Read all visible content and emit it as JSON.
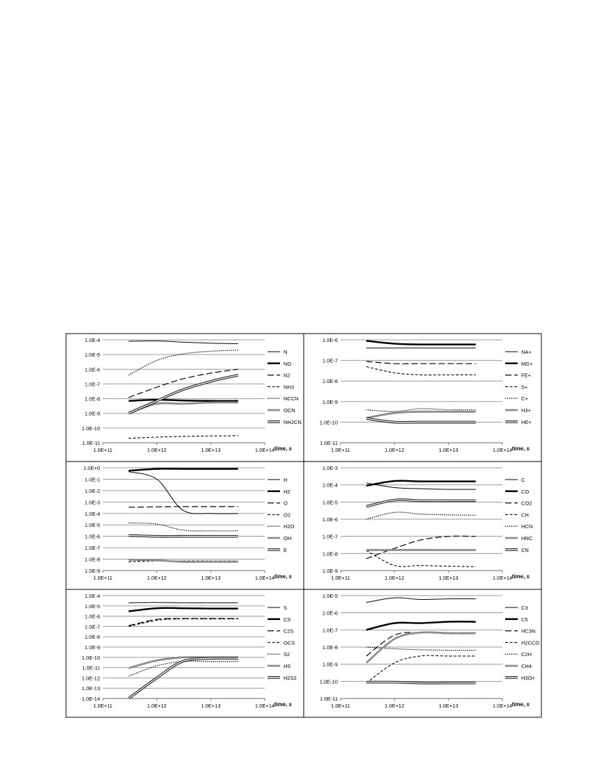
{
  "figure": {
    "chart_data": [
      {
        "type": "line",
        "panel": "top-left",
        "xlabel": "time, s",
        "xscale": "log",
        "yscale": "log",
        "xticks": [
          "1.0E+11",
          "1.0E+12",
          "1.0E+13",
          "1.0E+14"
        ],
        "yticks": [
          "1.0E-4",
          "1.0E-5",
          "1.0E-6",
          "1.0E-7",
          "1.0E-8",
          "1.0E-9",
          "1.0E-10",
          "1.0E-11"
        ],
        "xlim": [
          100000000000.0,
          100000000000000.0
        ],
        "ylim": [
          1e-11,
          0.0001
        ],
        "grid": "horizontal",
        "legend": "right",
        "x": [
          300000000000.0,
          1000000000000.0,
          3000000000000.0,
          10000000000000.0,
          32000000000000.0
        ],
        "series": [
          {
            "name": "N",
            "style": "thin",
            "values": [
              8e-05,
              8.5e-05,
              7e-05,
              6e-05,
              5.5e-05
            ]
          },
          {
            "name": "NO",
            "style": "thick",
            "values": [
              7e-09,
              8.5e-09,
              7.5e-09,
              7e-09,
              7e-09
            ]
          },
          {
            "name": "N2",
            "style": "dash",
            "values": [
              1.2e-08,
              6e-08,
              2.2e-07,
              5.5e-07,
              1e-06
            ]
          },
          {
            "name": "NH3",
            "style": "shortdash",
            "values": [
              2e-11,
              2.4e-11,
              2.7e-11,
              2.9e-11,
              3e-11
            ]
          },
          {
            "name": "NCCN",
            "style": "dot",
            "values": [
              4e-07,
              4e-06,
              1.1e-05,
              1.7e-05,
              2e-05
            ]
          },
          {
            "name": "OCN",
            "style": "gray",
            "values": [
              1e-09,
              4.5e-09,
              4.5e-09,
              5.5e-09,
              5.5e-09
            ]
          },
          {
            "name": "NH2CN",
            "style": "double",
            "values": [
              1e-09,
              7e-09,
              4e-08,
              1.5e-07,
              4e-07
            ]
          }
        ]
      },
      {
        "type": "line",
        "panel": "top-right",
        "xlabel": "time, s",
        "xscale": "log",
        "yscale": "log",
        "xticks": [
          "1.0E+11",
          "1.0E+12",
          "1.0E+13",
          "1.0E+14"
        ],
        "yticks": [
          "1.0E-6",
          "1.0E-7",
          "1.0E-8",
          "1.0E-9",
          "1.0E-10",
          "1.0E-11"
        ],
        "xlim": [
          100000000000.0,
          100000000000000.0
        ],
        "ylim": [
          1e-11,
          1e-06
        ],
        "grid": "horizontal",
        "legend": "right",
        "x": [
          300000000000.0,
          1000000000000.0,
          3000000000000.0,
          10000000000000.0,
          32000000000000.0
        ],
        "series": [
          {
            "name": "NA+",
            "style": "thin",
            "values": [
              4e-07,
              4e-07,
              4e-07,
              4e-07,
              4e-07
            ]
          },
          {
            "name": "MG+",
            "style": "thick",
            "values": [
              9e-07,
              6.5e-07,
              6e-07,
              6e-07,
              6e-07
            ]
          },
          {
            "name": "FE+",
            "style": "dash",
            "values": [
              9e-08,
              7e-08,
              7e-08,
              7e-08,
              7e-08
            ]
          },
          {
            "name": "S+",
            "style": "shortdash",
            "values": [
              5e-08,
              2.5e-08,
              2e-08,
              2e-08,
              2e-08
            ]
          },
          {
            "name": "C+",
            "style": "dot",
            "values": [
              4e-10,
              3.3e-10,
              4.5e-10,
              4e-10,
              4e-10
            ]
          },
          {
            "name": "H3+",
            "style": "gray",
            "values": [
              1.6e-10,
              2.8e-10,
              3.2e-10,
              3.2e-10,
              3.2e-10
            ]
          },
          {
            "name": "HE+",
            "style": "double",
            "values": [
              1.5e-10,
              1e-10,
              1e-10,
              1e-10,
              1e-10
            ]
          }
        ]
      },
      {
        "type": "line",
        "panel": "middle-left",
        "xlabel": "time, s",
        "xscale": "log",
        "yscale": "log",
        "xticks": [
          "1.0E+11",
          "1.0E+12",
          "1.0E+13",
          "1.0E+14"
        ],
        "yticks": [
          "1.0E+0",
          "1.0E-1",
          "1.0E-2",
          "1.0E-3",
          "1.0E-4",
          "1.0E-5",
          "1.0E-6",
          "1.0E-7",
          "1.0E-8",
          "1.0E-9"
        ],
        "xlim": [
          100000000000.0,
          100000000000000.0
        ],
        "ylim": [
          1e-09,
          1
        ],
        "grid": "horizontal",
        "legend": "right",
        "x": [
          300000000000.0,
          1000000000000.0,
          3000000000000.0,
          10000000000000.0,
          32000000000000.0
        ],
        "series": [
          {
            "name": "H",
            "style": "thin",
            "values": [
              0.45,
              0.1,
              0.0002,
              0.0001,
              0.0001
            ]
          },
          {
            "name": "H2",
            "style": "thick",
            "values": [
              0.55,
              0.8,
              0.8,
              0.8,
              0.8
            ]
          },
          {
            "name": "O",
            "style": "dash",
            "values": [
              0.00035,
              0.00038,
              0.0004,
              0.0004,
              0.0004
            ]
          },
          {
            "name": "O2",
            "style": "shortdash",
            "values": [
              6e-09,
              7e-09,
              7e-09,
              7e-09,
              7e-09
            ]
          },
          {
            "name": "H2O",
            "style": "dot",
            "values": [
              1.5e-05,
              1.2e-05,
              3.5e-06,
              3e-06,
              3e-06
            ]
          },
          {
            "name": "OH",
            "style": "gray",
            "values": [
              9e-09,
              8e-09,
              6e-09,
              6e-09,
              6e-09
            ]
          },
          {
            "name": "E",
            "style": "double",
            "values": [
              1.2e-06,
              1e-06,
              1e-06,
              1e-06,
              1e-06
            ]
          }
        ]
      },
      {
        "type": "line",
        "panel": "middle-right",
        "xlabel": "time, s",
        "xscale": "log",
        "yscale": "log",
        "xticks": [
          "1.0E+11",
          "1.0E+12",
          "1.0E+13",
          "1.0E+14"
        ],
        "yticks": [
          "1.0E-3",
          "1.0E-4",
          "1.0E-5",
          "1.0E-6",
          "1.0E-7",
          "1.0E-8",
          "1.0E-9"
        ],
        "xlim": [
          100000000000.0,
          100000000000000.0
        ],
        "ylim": [
          1e-09,
          0.001
        ],
        "grid": "horizontal",
        "legend": "right",
        "x": [
          300000000000.0,
          1000000000000.0,
          3000000000000.0,
          10000000000000.0,
          32000000000000.0
        ],
        "series": [
          {
            "name": "C",
            "style": "thin",
            "values": [
              0.00013,
              7e-05,
              6e-05,
              5.5e-05,
              5.5e-05
            ]
          },
          {
            "name": "CO",
            "style": "thick",
            "values": [
              9e-05,
              0.00017,
              0.00016,
              0.00016,
              0.00016
            ]
          },
          {
            "name": "CO2",
            "style": "dash",
            "values": [
              5e-09,
              2e-08,
              6e-08,
              1e-07,
              1e-07
            ]
          },
          {
            "name": "CH",
            "style": "shortdash",
            "values": [
              1.5e-08,
              2e-09,
              2e-09,
              1.8e-09,
              1.7e-09
            ]
          },
          {
            "name": "HCN",
            "style": "dot",
            "values": [
              1e-06,
              2.5e-06,
              2e-06,
              1.8e-06,
              1.7e-06
            ]
          },
          {
            "name": "HNC",
            "style": "gray",
            "values": [
              1.6e-08,
              1.6e-08,
              1.6e-08,
              1.6e-08,
              1.6e-08
            ]
          },
          {
            "name": "CN",
            "style": "double",
            "values": [
              5.5e-06,
              1.3e-05,
              1.2e-05,
              1.2e-05,
              1.2e-05
            ]
          }
        ]
      },
      {
        "type": "line",
        "panel": "bottom-left",
        "xlabel": "time, s",
        "xscale": "log",
        "yscale": "log",
        "xticks": [
          "1.0E+11",
          "1.0E+12",
          "1.0E+13",
          "1.0E+14"
        ],
        "yticks": [
          "1.0E-4",
          "1.0E-5",
          "1.0E-6",
          "1.0E-7",
          "1.0E-8",
          "1.0E-9",
          "1.0E-10",
          "1.0E-11",
          "1.0E-12",
          "1.0E-13",
          "1.0E-14"
        ],
        "xlim": [
          100000000000.0,
          100000000000000.0
        ],
        "ylim": [
          1e-14,
          0.0001
        ],
        "grid": "horizontal",
        "legend": "right",
        "x": [
          300000000000.0,
          1000000000000.0,
          3000000000000.0,
          10000000000000.0,
          32000000000000.0
        ],
        "series": [
          {
            "name": "S",
            "style": "thin",
            "values": [
              2e-05,
              2.2e-05,
              2e-05,
              2e-05,
              2e-05
            ]
          },
          {
            "name": "CS",
            "style": "thick",
            "values": [
              3e-06,
              6e-06,
              6e-06,
              5.5e-06,
              5.5e-06
            ]
          },
          {
            "name": "C2S",
            "style": "dash",
            "values": [
              1.2e-07,
              5e-07,
              6e-07,
              6e-07,
              6e-07
            ]
          },
          {
            "name": "OCS",
            "style": "shortdash",
            "values": [
              1e-07,
              4e-07,
              5.5e-07,
              5.5e-07,
              5.5e-07
            ]
          },
          {
            "name": "S2",
            "style": "dot",
            "values": [
              1.5e-12,
              1.5e-11,
              4e-11,
              4e-11,
              4e-11
            ]
          },
          {
            "name": "HS",
            "style": "gray",
            "values": [
              9e-12,
              5e-11,
              1e-10,
              1e-10,
              1e-10
            ]
          },
          {
            "name": "H2S2",
            "style": "double",
            "values": [
              1e-14,
              1e-12,
              4e-11,
              8e-11,
              8e-11
            ]
          }
        ]
      },
      {
        "type": "line",
        "panel": "bottom-right",
        "xlabel": "time, s",
        "xscale": "log",
        "yscale": "log",
        "xticks": [
          "1.0E+11",
          "1.0E+12",
          "1.0E+13",
          "1.0E+14"
        ],
        "yticks": [
          "1.0E-5",
          "1.0E-6",
          "1.0E-7",
          "1.0E-8",
          "1.0E-9",
          "1.0E-10",
          "1.0E-11"
        ],
        "xlim": [
          100000000000.0,
          100000000000000.0
        ],
        "ylim": [
          1e-11,
          1e-05
        ],
        "grid": "horizontal",
        "legend": "right",
        "x": [
          300000000000.0,
          1000000000000.0,
          3000000000000.0,
          10000000000000.0,
          32000000000000.0
        ],
        "series": [
          {
            "name": "C3",
            "style": "thin",
            "values": [
              4e-06,
              7.5e-06,
              6e-06,
              6.5e-06,
              6.5e-06
            ]
          },
          {
            "name": "C5",
            "style": "thick",
            "values": [
              1e-07,
              2.5e-07,
              2.5e-07,
              3e-07,
              3e-07
            ]
          },
          {
            "name": "HC3N",
            "style": "dash",
            "values": [
              3e-09,
              5e-08,
              7e-08,
              6e-08,
              6e-08
            ]
          },
          {
            "name": "H2CCO",
            "style": "shortdash",
            "values": [
              8e-11,
              1.2e-09,
              3e-09,
              3e-09,
              3e-09
            ]
          },
          {
            "name": "C2H",
            "style": "dot",
            "values": [
              1e-08,
              8e-09,
              7e-09,
              6.5e-09,
              6.5e-09
            ]
          },
          {
            "name": "CH4",
            "style": "gray",
            "values": [
              1.2e-09,
              3e-08,
              7e-08,
              6.5e-08,
              6.5e-08
            ]
          },
          {
            "name": "H3O+",
            "style": "double",
            "values": [
              9e-11,
              9e-11,
              8e-11,
              8e-11,
              8e-11
            ]
          }
        ]
      }
    ]
  }
}
